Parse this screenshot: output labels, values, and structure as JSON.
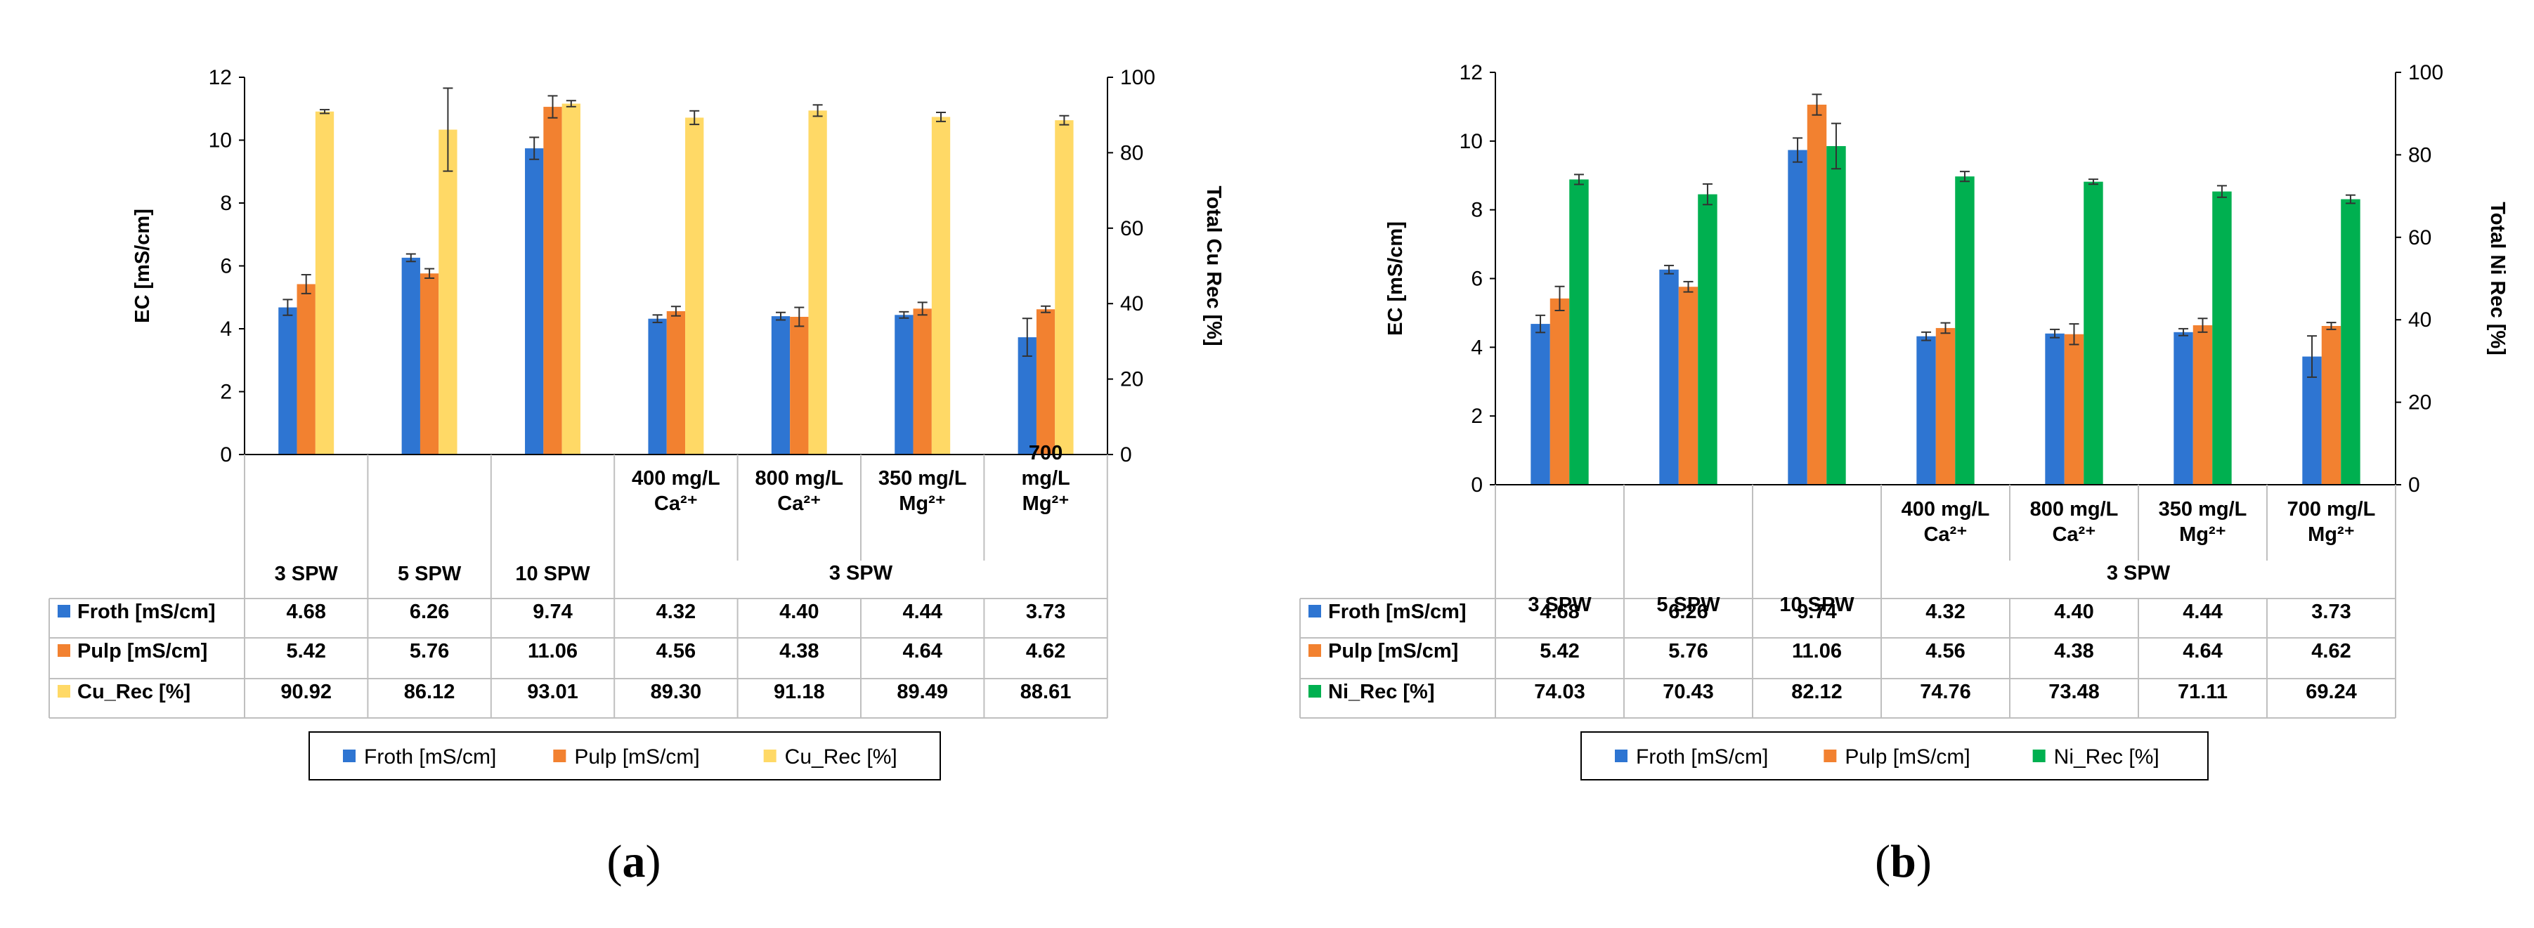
{
  "chart_data": [
    {
      "type": "bar",
      "panel_label": "a",
      "categories": [
        "3 SPW",
        "5 SPW",
        "10 SPW",
        "400 mg/L Ca²⁺",
        "800 mg/L Ca²⁺",
        "350 mg/L Mg²⁺",
        "700 mg/L Mg²⁺"
      ],
      "category_lines": [
        [
          "3 SPW"
        ],
        [
          "5 SPW"
        ],
        [
          "10 SPW"
        ],
        [
          "400 mg/L",
          "Ca²⁺"
        ],
        [
          "800 mg/L",
          "Ca²⁺"
        ],
        [
          "350 mg/L",
          "Mg²⁺"
        ],
        [
          "700",
          "mg/L",
          "Mg²⁺"
        ]
      ],
      "group_label": "3 SPW",
      "ylabel": "EC [mS/cm]",
      "ylim": [
        0,
        12
      ],
      "yticks": [
        "0",
        "2",
        "4",
        "6",
        "8",
        "10",
        "12"
      ],
      "y2label": "Total Cu Rec [%]",
      "y2lim": [
        0,
        100
      ],
      "y2ticks": [
        "0",
        "20",
        "40",
        "60",
        "80",
        "100"
      ],
      "series": [
        {
          "name": "Froth [mS/cm]",
          "axis": "left",
          "color": "#2E75D2",
          "values": [
            4.68,
            6.26,
            9.74,
            4.32,
            4.4,
            4.44,
            3.73
          ],
          "labels": [
            "4.68",
            "6.26",
            "9.74",
            "4.32",
            "4.40",
            "4.44",
            "3.73"
          ],
          "err": [
            0.25,
            0.12,
            0.35,
            0.12,
            0.12,
            0.1,
            0.6
          ]
        },
        {
          "name": "Pulp [mS/cm]",
          "axis": "left",
          "color": "#F28130",
          "values": [
            5.42,
            5.76,
            11.06,
            4.56,
            4.38,
            4.64,
            4.62
          ],
          "labels": [
            "5.42",
            "5.76",
            "11.06",
            "4.56",
            "4.38",
            "4.64",
            "4.62"
          ],
          "err": [
            0.3,
            0.15,
            0.35,
            0.15,
            0.3,
            0.2,
            0.1
          ]
        },
        {
          "name": "Cu_Rec [%]",
          "axis": "right",
          "color": "#FFD966",
          "values": [
            90.92,
            86.12,
            93.01,
            89.3,
            91.18,
            89.49,
            88.61
          ],
          "labels": [
            "90.92",
            "86.12",
            "93.01",
            "89.30",
            "91.18",
            "89.49",
            "88.61"
          ],
          "err": [
            0.5,
            11.0,
            0.8,
            1.8,
            1.5,
            1.2,
            1.2
          ]
        }
      ]
    },
    {
      "type": "bar",
      "panel_label": "b",
      "categories": [
        "3 SPW",
        "5 SPW",
        "10 SPW",
        "400 mg/L Ca²⁺",
        "800 mg/L Ca²⁺",
        "350 mg/L Mg²⁺",
        "700 mg/L Mg²⁺"
      ],
      "category_lines": [
        [
          "3 SPW"
        ],
        [
          "5 SPW"
        ],
        [
          "10 SPW"
        ],
        [
          "400 mg/L",
          "Ca²⁺"
        ],
        [
          "800 mg/L",
          "Ca²⁺"
        ],
        [
          "350 mg/L",
          "Mg²⁺"
        ],
        [
          "700 mg/L",
          "Mg²⁺"
        ]
      ],
      "group_label": "3 SPW",
      "ylabel": "EC [mS/cm]",
      "ylim": [
        0,
        12
      ],
      "yticks": [
        "0",
        "2",
        "4",
        "6",
        "8",
        "10",
        "12"
      ],
      "y2label": "Total Ni Rec [%]",
      "y2lim": [
        0,
        100
      ],
      "y2ticks": [
        "0",
        "20",
        "40",
        "60",
        "80",
        "100"
      ],
      "series": [
        {
          "name": "Froth [mS/cm]",
          "axis": "left",
          "color": "#2E75D2",
          "values": [
            4.68,
            6.26,
            9.74,
            4.32,
            4.4,
            4.44,
            3.73
          ],
          "labels": [
            "4.68",
            "6.26",
            "9.74",
            "4.32",
            "4.40",
            "4.44",
            "3.73"
          ],
          "err": [
            0.25,
            0.12,
            0.35,
            0.12,
            0.12,
            0.1,
            0.6
          ]
        },
        {
          "name": "Pulp [mS/cm]",
          "axis": "left",
          "color": "#F28130",
          "values": [
            5.42,
            5.76,
            11.06,
            4.56,
            4.38,
            4.64,
            4.62
          ],
          "labels": [
            "5.42",
            "5.76",
            "11.06",
            "4.56",
            "4.38",
            "4.64",
            "4.62"
          ],
          "err": [
            0.35,
            0.15,
            0.3,
            0.15,
            0.3,
            0.2,
            0.1
          ]
        },
        {
          "name": "Ni_Rec [%]",
          "axis": "right",
          "color": "#00B050",
          "values": [
            74.03,
            70.43,
            82.12,
            74.76,
            73.48,
            71.11,
            69.24
          ],
          "labels": [
            "74.03",
            "70.43",
            "82.12",
            "74.76",
            "73.48",
            "71.11",
            "69.24"
          ],
          "err": [
            1.2,
            2.5,
            5.5,
            1.2,
            0.6,
            1.4,
            1.0
          ]
        }
      ]
    }
  ]
}
